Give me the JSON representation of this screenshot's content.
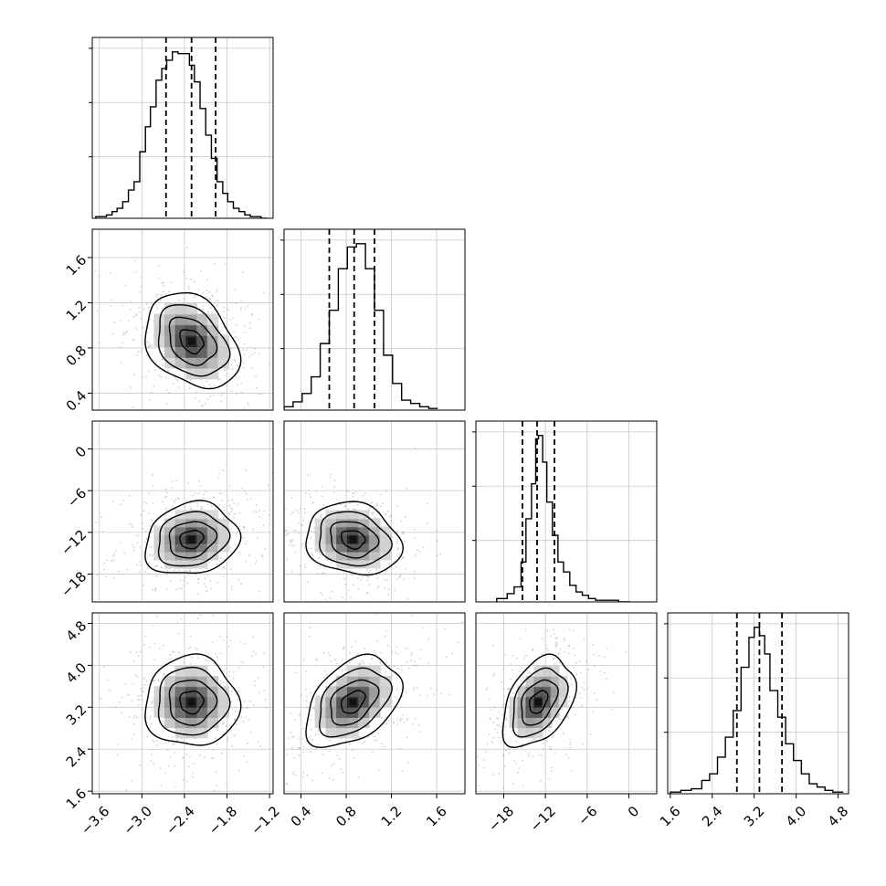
{
  "chart_data": {
    "type": "corner",
    "n_params": 4,
    "colors": {
      "hist_line": "#000000",
      "quantile_line": "#000000",
      "points": "#9a9a9a",
      "grid": "#c8c8c8",
      "density_dark": "#111111"
    },
    "grid": true,
    "parameters": [
      {
        "range": [
          -3.7,
          -1.15
        ],
        "ticks": [
          -3.6,
          -3.0,
          -2.4,
          -1.8,
          -1.2
        ],
        "tick_labels": [
          "−3.6",
          "−3.0",
          "−2.4",
          "−1.8",
          "−1.2"
        ],
        "quantiles": [
          -2.66,
          -2.3,
          -1.96
        ],
        "hist": {
          "edges": [
            -3.65,
            -3.58,
            -3.5,
            -3.42,
            -3.35,
            -3.27,
            -3.19,
            -3.11,
            -3.03,
            -2.95,
            -2.88,
            -2.8,
            -2.72,
            -2.65,
            -2.57,
            -2.49,
            -2.41,
            -2.33,
            -2.26,
            -2.18,
            -2.1,
            -2.02,
            -1.94,
            -1.86,
            -1.79,
            -1.71,
            -1.63,
            -1.55,
            -1.47,
            -1.4,
            -1.32,
            -1.24
          ],
          "counts": [
            0.01,
            0.01,
            0.02,
            0.04,
            0.06,
            0.1,
            0.17,
            0.22,
            0.4,
            0.55,
            0.67,
            0.83,
            0.9,
            0.95,
            1.0,
            0.99,
            0.99,
            0.92,
            0.82,
            0.66,
            0.5,
            0.36,
            0.22,
            0.15,
            0.1,
            0.06,
            0.04,
            0.02,
            0.01,
            0.01,
            0.0
          ]
        }
      },
      {
        "range": [
          0.25,
          1.85
        ],
        "ticks": [
          0.4,
          0.8,
          1.2,
          1.6
        ],
        "tick_labels": [
          "0.4",
          "0.8",
          "1.2",
          "1.6"
        ],
        "quantiles": [
          0.65,
          0.87,
          1.05
        ],
        "hist": {
          "edges": [
            0.25,
            0.33,
            0.41,
            0.49,
            0.57,
            0.65,
            0.73,
            0.81,
            0.89,
            0.97,
            1.05,
            1.13,
            1.21,
            1.29,
            1.37,
            1.45,
            1.53,
            1.61
          ],
          "counts": [
            0.02,
            0.05,
            0.1,
            0.2,
            0.4,
            0.6,
            0.85,
            0.98,
            1.0,
            0.85,
            0.6,
            0.33,
            0.16,
            0.06,
            0.04,
            0.02,
            0.01
          ]
        }
      },
      {
        "range": [
          -22,
          4
        ],
        "ticks": [
          -18,
          -12,
          -6,
          0
        ],
        "tick_labels": [
          "−18",
          "−12",
          "−6",
          "0"
        ],
        "quantiles": [
          -15.3,
          -13.2,
          -10.7
        ],
        "hist": {
          "edges": [
            -19.0,
            -17.5,
            -16.5,
            -15.5,
            -14.8,
            -14.0,
            -13.4,
            -13.0,
            -12.4,
            -11.8,
            -11.0,
            -10.2,
            -9.4,
            -8.5,
            -7.6,
            -6.7,
            -5.8,
            -4.8,
            -3.8,
            -2.8,
            -1.5,
            0.2
          ],
          "counts": [
            0.02,
            0.05,
            0.09,
            0.24,
            0.5,
            0.71,
            0.98,
            1.0,
            0.84,
            0.6,
            0.4,
            0.24,
            0.18,
            0.1,
            0.06,
            0.04,
            0.02,
            0.01,
            0.01,
            0.01,
            0.0
          ]
        }
      },
      {
        "range": [
          1.55,
          5.0
        ],
        "ticks": [
          1.6,
          2.4,
          3.2,
          4.0,
          4.8
        ],
        "tick_labels": [
          "1.6",
          "2.4",
          "3.2",
          "4.0",
          "4.8"
        ],
        "quantiles": [
          2.87,
          3.3,
          3.73
        ],
        "hist": {
          "edges": [
            1.6,
            1.8,
            2.0,
            2.2,
            2.35,
            2.5,
            2.65,
            2.8,
            2.95,
            3.1,
            3.2,
            3.3,
            3.4,
            3.5,
            3.65,
            3.8,
            3.95,
            4.1,
            4.25,
            4.4,
            4.55,
            4.7,
            4.9
          ],
          "counts": [
            0.01,
            0.02,
            0.03,
            0.08,
            0.12,
            0.22,
            0.34,
            0.5,
            0.76,
            0.94,
            1.0,
            0.95,
            0.84,
            0.62,
            0.46,
            0.3,
            0.2,
            0.12,
            0.06,
            0.04,
            0.02,
            0.01
          ]
        }
      }
    ],
    "pair_stats": [
      {
        "row": 1,
        "col": 0,
        "mean": [
          -2.3,
          0.86
        ],
        "sigma": [
          0.33,
          0.21
        ],
        "rho": -0.3
      },
      {
        "row": 2,
        "col": 0,
        "mean": [
          -2.3,
          -13.0
        ],
        "sigma": [
          0.33,
          2.6
        ],
        "rho": 0.15
      },
      {
        "row": 2,
        "col": 1,
        "mean": [
          0.86,
          -13.0
        ],
        "sigma": [
          0.21,
          2.6
        ],
        "rho": -0.15
      },
      {
        "row": 3,
        "col": 0,
        "mean": [
          -2.3,
          3.3
        ],
        "sigma": [
          0.33,
          0.43
        ],
        "rho": 0.0
      },
      {
        "row": 3,
        "col": 1,
        "mean": [
          0.86,
          3.3
        ],
        "sigma": [
          0.21,
          0.43
        ],
        "rho": 0.4
      },
      {
        "row": 3,
        "col": 2,
        "mean": [
          -13.0,
          3.3
        ],
        "sigma": [
          2.6,
          0.43
        ],
        "rho": 0.4
      }
    ],
    "contour_levels_sigma": [
      0.5,
      1.0,
      1.5,
      2.0
    ]
  }
}
